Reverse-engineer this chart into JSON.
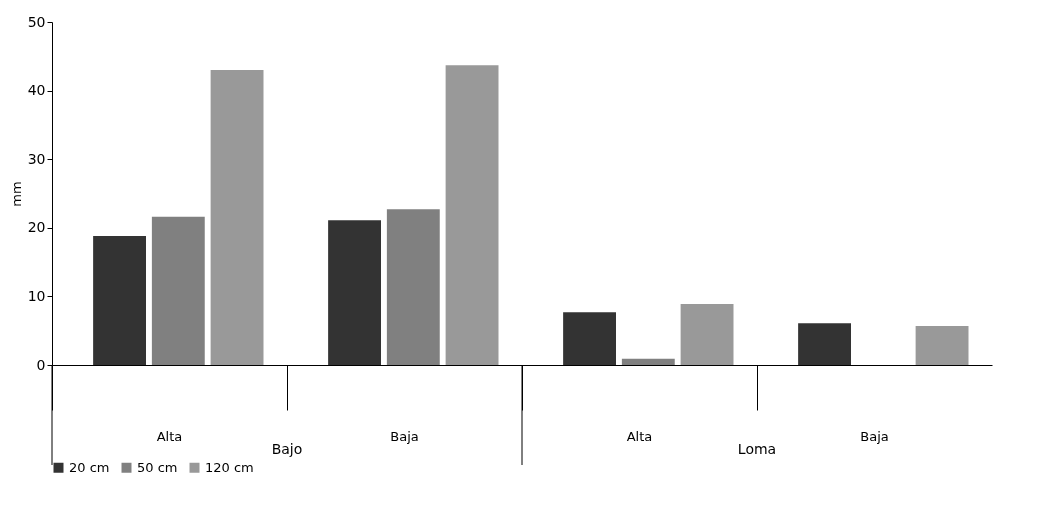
{
  "chart_data": {
    "type": "bar",
    "ylabel": "mm",
    "categories": [
      "Alta",
      "Baja",
      "Alta",
      "Baja"
    ],
    "series": [
      {
        "name": "20 cm",
        "color": "#333333",
        "values": [
          18.8,
          21.1,
          7.7,
          6.1
        ]
      },
      {
        "name": "50 cm",
        "color": "#808080",
        "values": [
          21.6,
          22.7,
          0.9,
          null
        ]
      },
      {
        "name": "120 cm",
        "color": "#999999",
        "values": [
          43.0,
          43.7,
          8.9,
          5.7
        ]
      }
    ],
    "ylim": [
      0,
      50
    ],
    "yticks": [
      0,
      10,
      20,
      30,
      40,
      50
    ],
    "grid": false,
    "legend": "bottom",
    "annotations": [
      "Bajo",
      "Loma"
    ]
  }
}
